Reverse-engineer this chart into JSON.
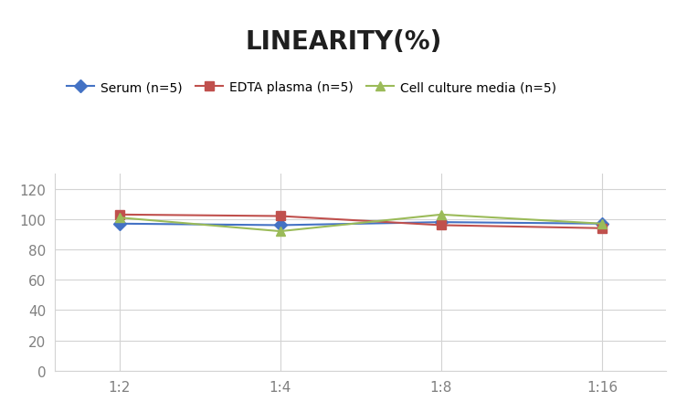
{
  "title": "LINEARITY(%)",
  "x_labels": [
    "1:2",
    "1:4",
    "1:8",
    "1:16"
  ],
  "x_positions": [
    0,
    1,
    2,
    3
  ],
  "series": [
    {
      "label": "Serum (n=5)",
      "color": "#4472C4",
      "marker": "D",
      "values": [
        97,
        96,
        98,
        97
      ]
    },
    {
      "label": "EDTA plasma (n=5)",
      "color": "#C0504D",
      "marker": "s",
      "values": [
        103,
        102,
        96,
        94
      ]
    },
    {
      "label": "Cell culture media (n=5)",
      "color": "#9BBB59",
      "marker": "^",
      "values": [
        101,
        92,
        103,
        97
      ]
    }
  ],
  "ylim": [
    0,
    130
  ],
  "yticks": [
    0,
    20,
    40,
    60,
    80,
    100,
    120
  ],
  "grid_color": "#D3D3D3",
  "background_color": "#FFFFFF",
  "title_fontsize": 20,
  "title_fontweight": "bold",
  "legend_fontsize": 10,
  "tick_fontsize": 11,
  "tick_color": "#808080"
}
